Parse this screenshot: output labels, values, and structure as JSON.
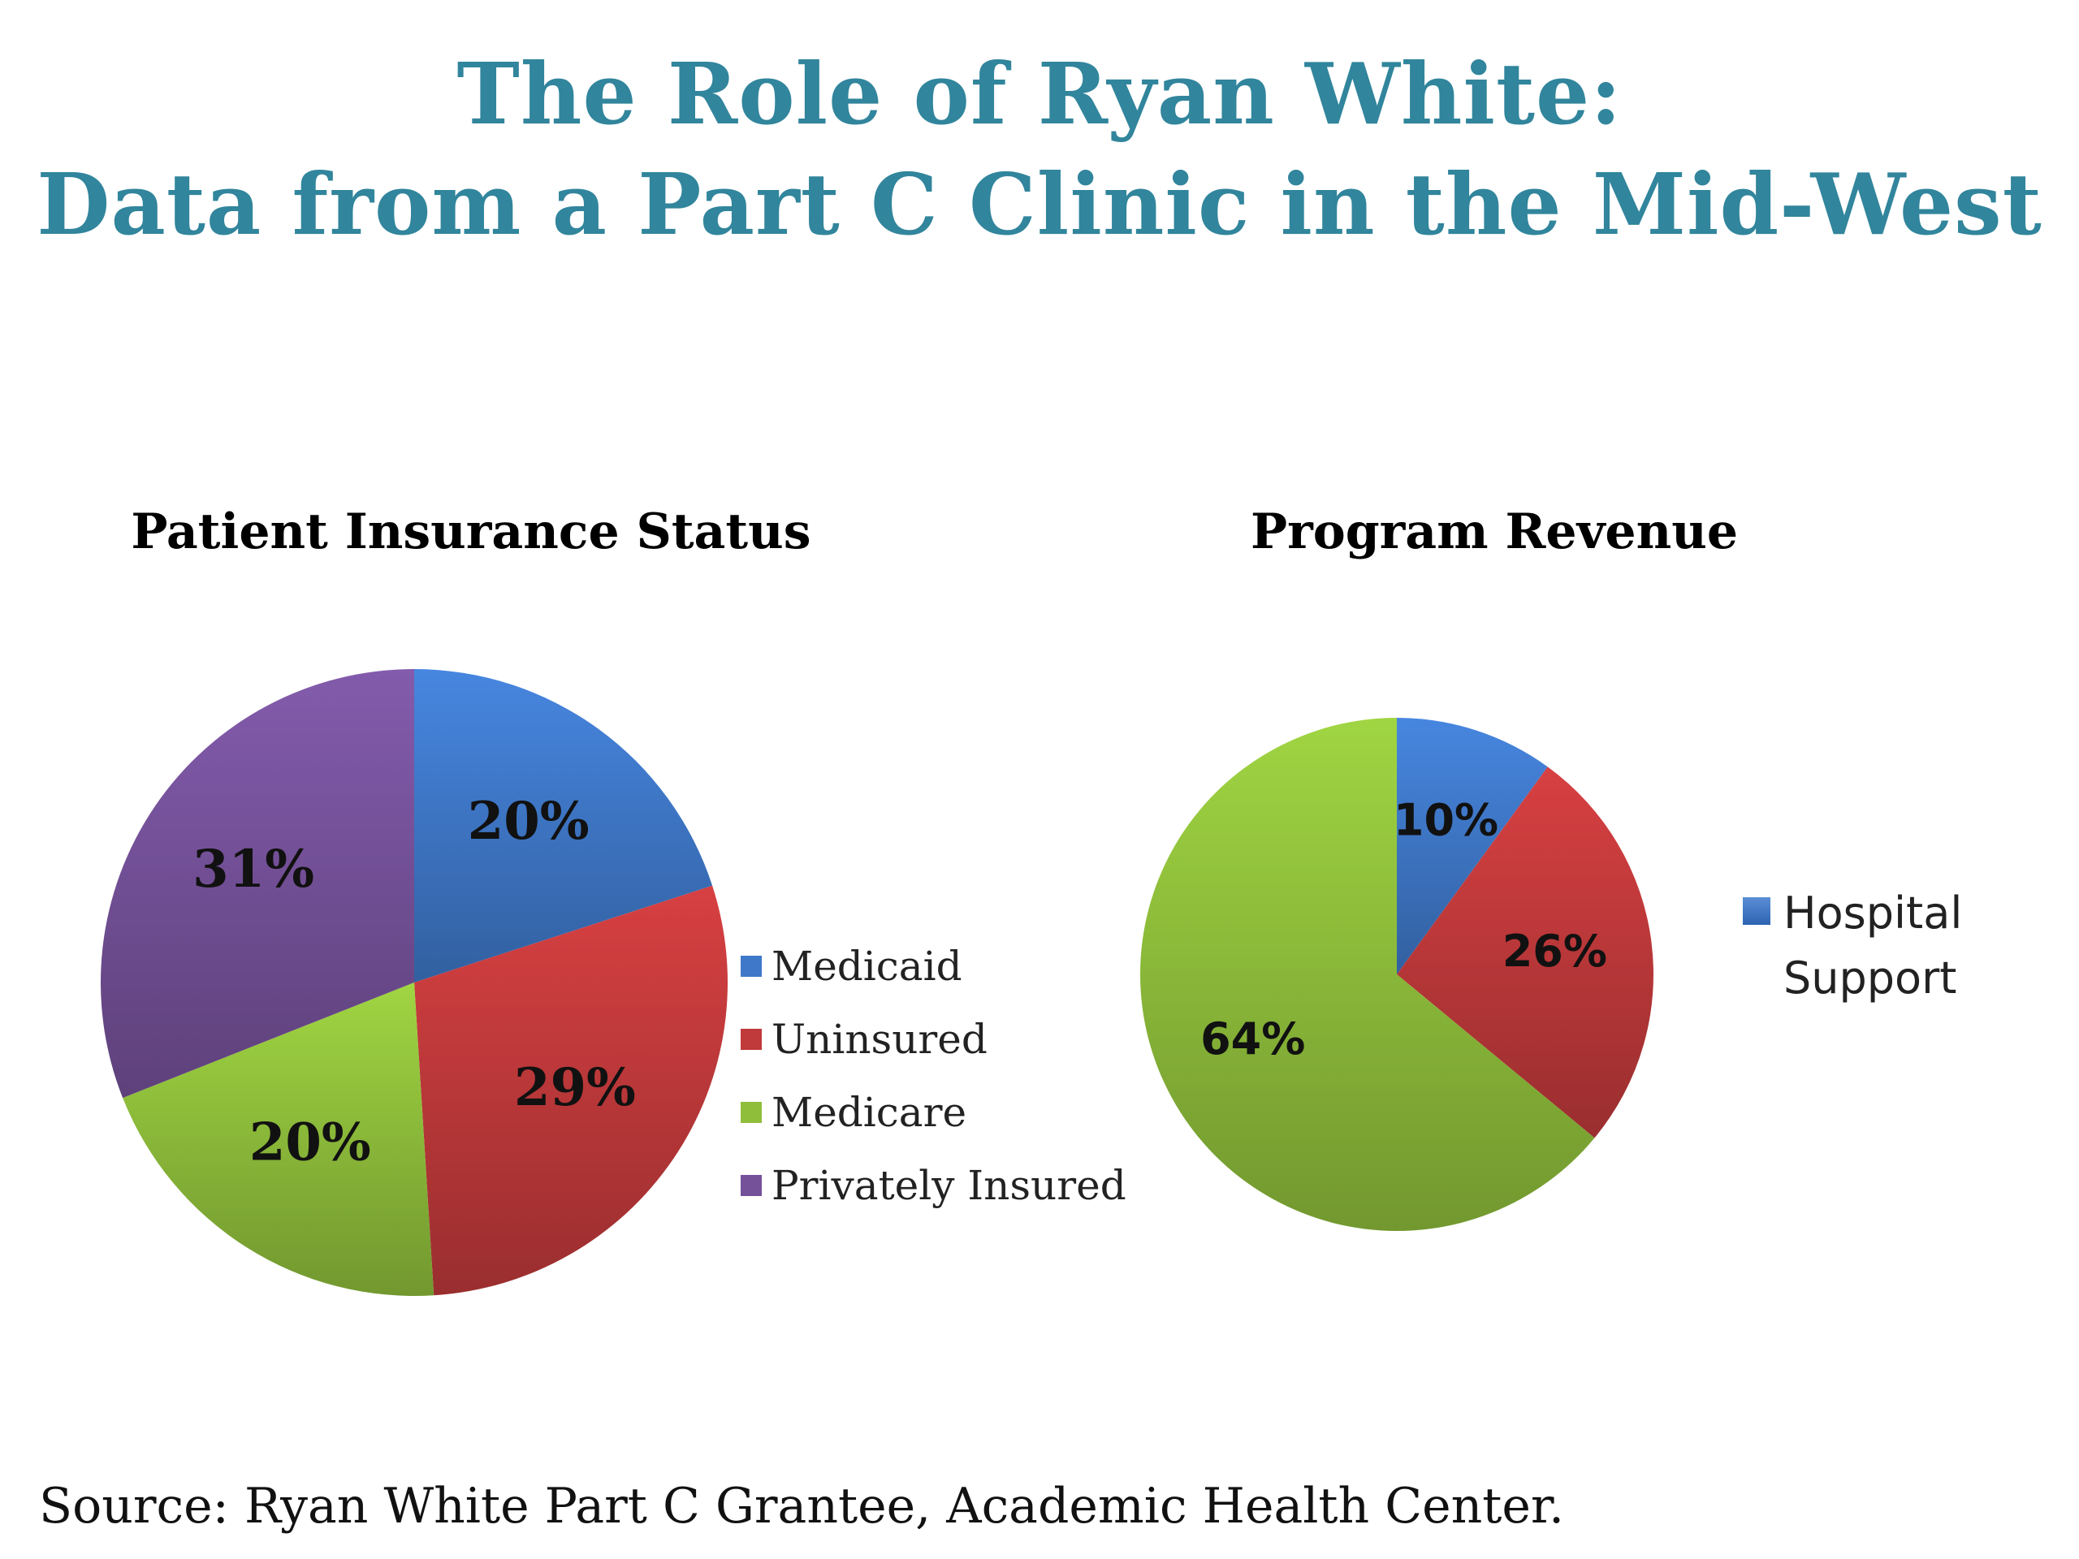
{
  "title_line_1": "The Role of Ryan White:",
  "title_line_2": "Data from a Part C Clinic in the Mid-West",
  "source": "Source: Ryan White Part C Grantee, Academic Health Center.",
  "chart_data": [
    {
      "type": "pie",
      "title": "Patient Insurance Status",
      "categories": [
        "Medicaid",
        "Uninsured",
        "Medicare",
        "Privately Insured"
      ],
      "values": [
        20,
        29,
        20,
        31
      ],
      "labels": [
        "20%",
        "29%",
        "20%",
        "31%"
      ],
      "colors": [
        "#3f78c8",
        "#c0393b",
        "#8fbe3b",
        "#75519a"
      ],
      "legend": "right"
    },
    {
      "type": "pie",
      "title": "Program Revenue",
      "categories": [
        "Hospital Support",
        "",
        ""
      ],
      "values": [
        10,
        26,
        64
      ],
      "labels": [
        "10%",
        "26%",
        "64%"
      ],
      "colors": [
        "#3f78c8",
        "#c0393b",
        "#8fbe3b"
      ],
      "legend": "right"
    }
  ]
}
